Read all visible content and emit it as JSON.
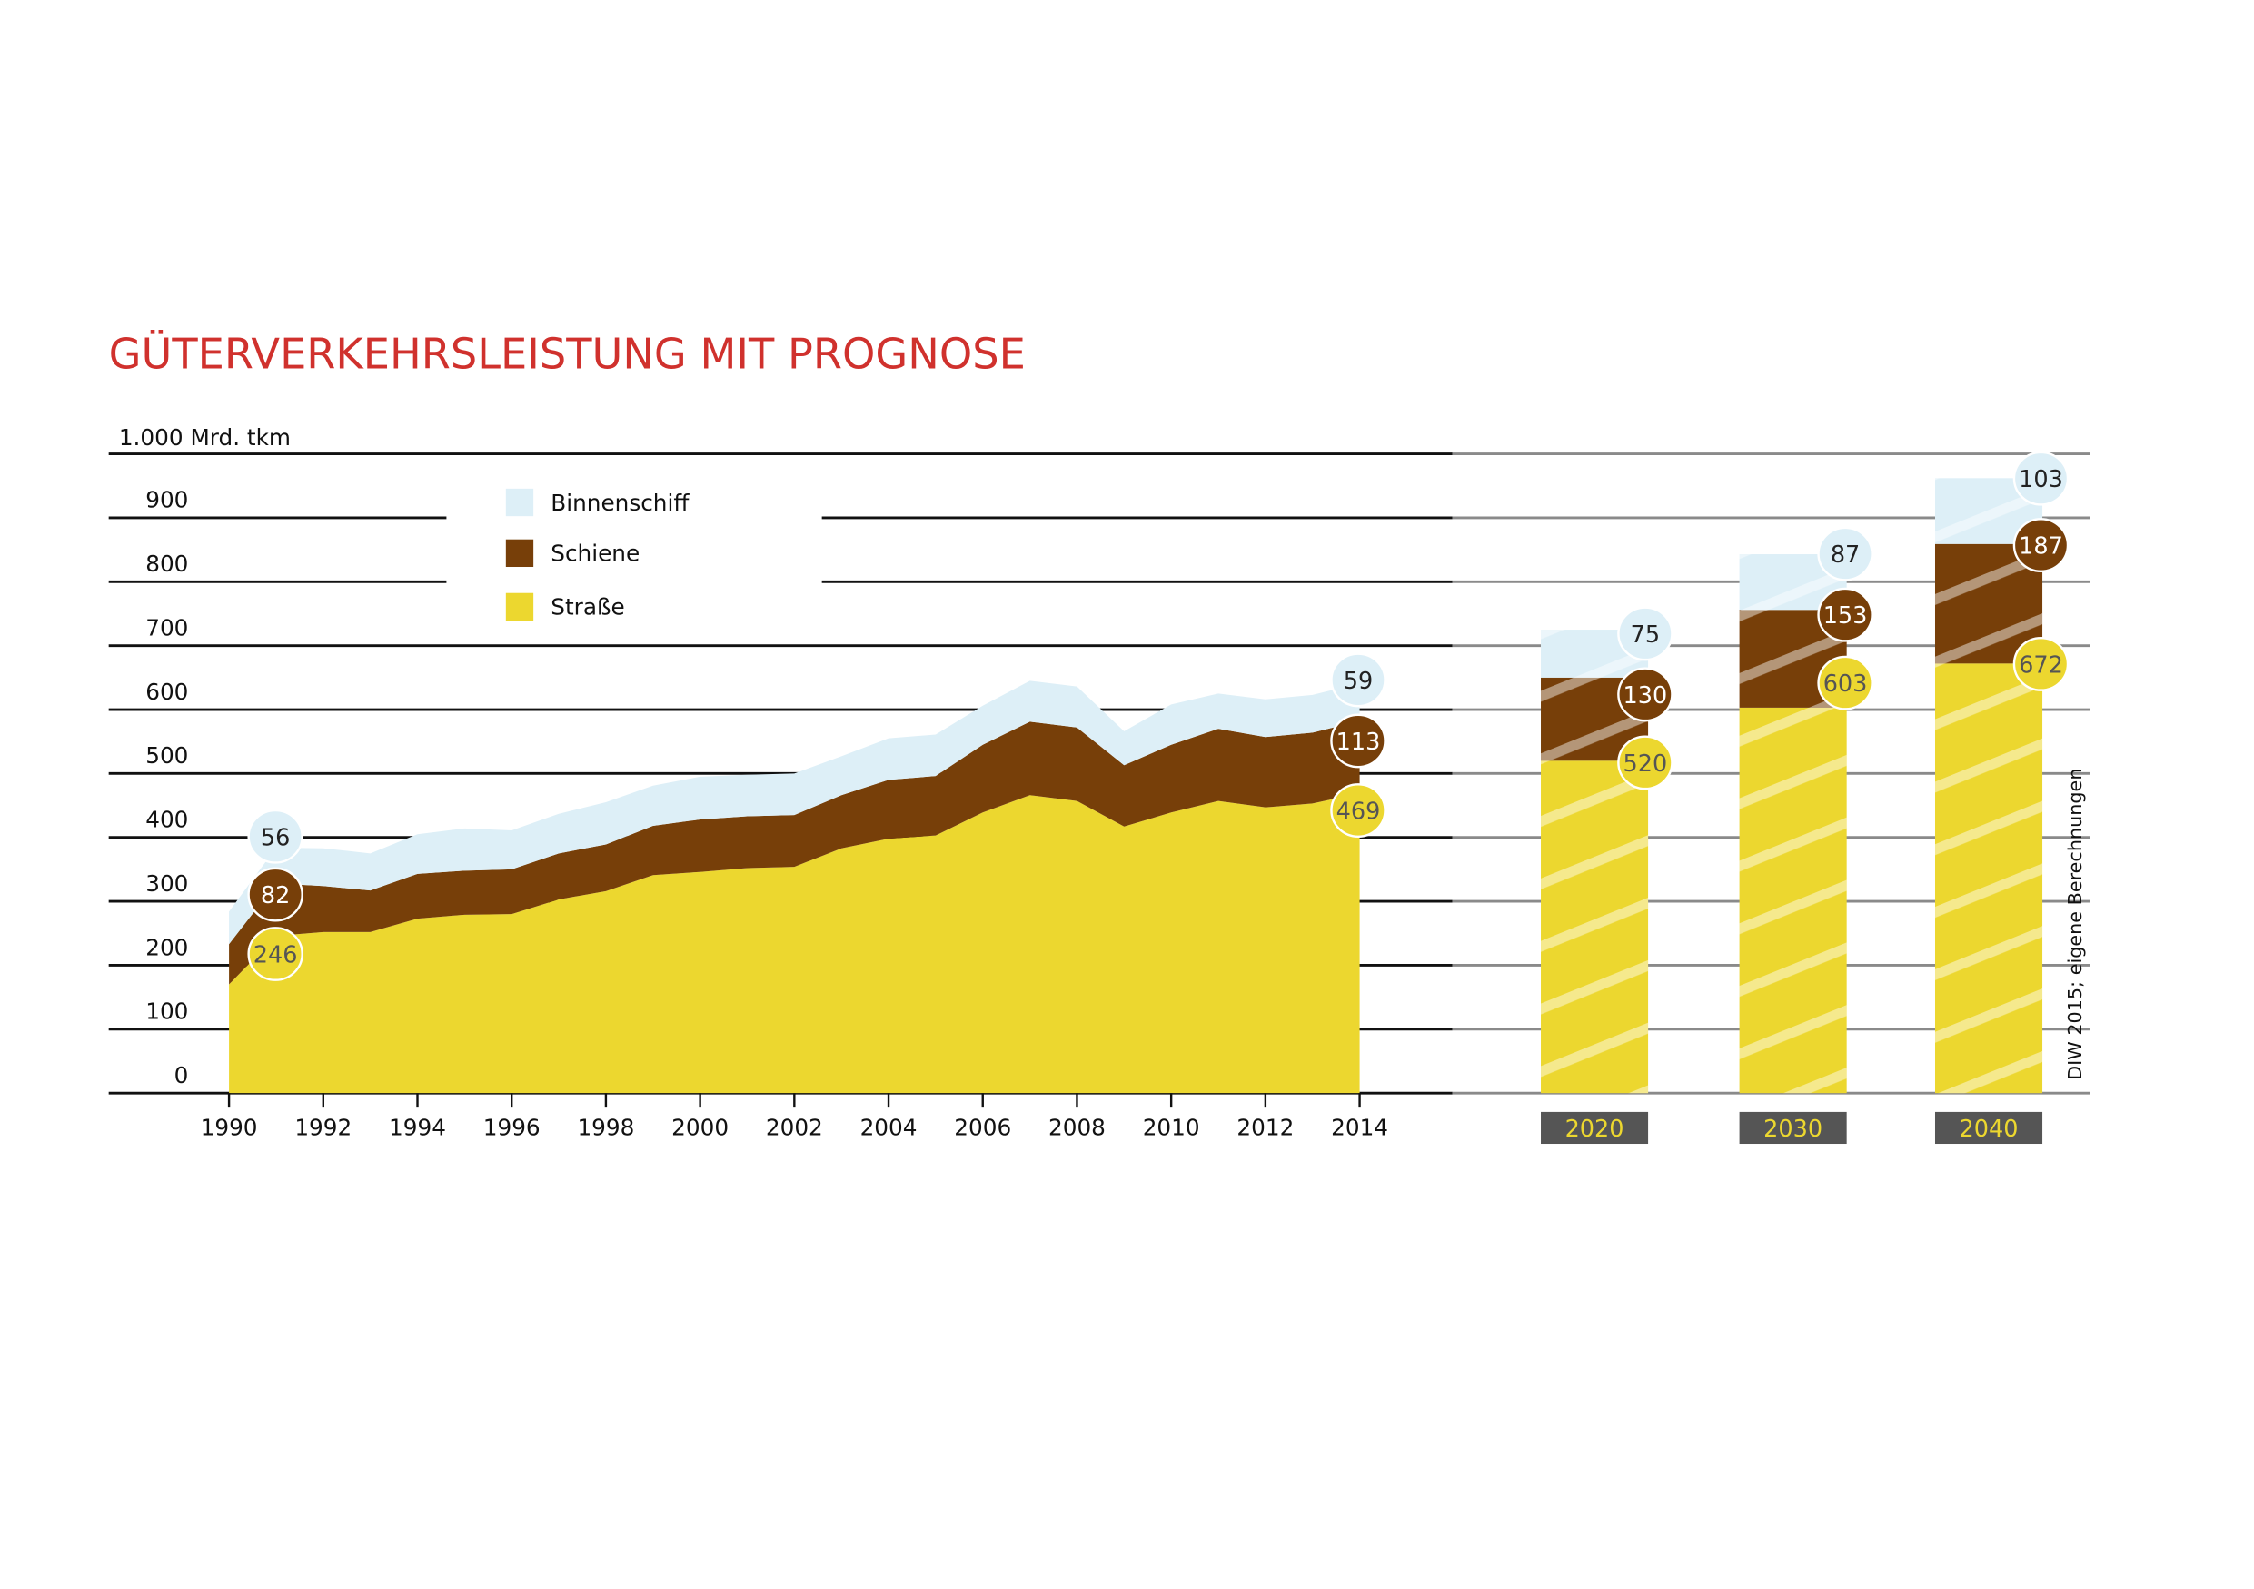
{
  "chart_data": {
    "type": "area",
    "title": "GÜTERVERKEHRSLEISTUNG MIT PROGNOSE",
    "ylabel": "1.000 Mrd. tkm",
    "ylim": [
      0,
      1000
    ],
    "yticks": [
      "0",
      "100",
      "200",
      "300",
      "400",
      "500",
      "600",
      "700",
      "800",
      "900"
    ],
    "grid": true,
    "legend": {
      "position": "top-left",
      "entries": [
        "Binnenschiff",
        "Schiene",
        "Straße"
      ]
    },
    "colors": {
      "Binnenschiff": "#ddeff7",
      "Schiene": "#773f09",
      "Straße": "#ecd72f",
      "title": "#d0312d",
      "year_box": "#555555"
    },
    "x": [
      1990,
      1991,
      1992,
      1993,
      1994,
      1995,
      1996,
      1997,
      1998,
      1999,
      2000,
      2001,
      2002,
      2003,
      2004,
      2005,
      2006,
      2007,
      2008,
      2009,
      2010,
      2011,
      2012,
      2013,
      2014
    ],
    "xticks": [
      "1990",
      "1992",
      "1994",
      "1996",
      "1998",
      "2000",
      "2002",
      "2004",
      "2006",
      "2008",
      "2010",
      "2012",
      "2014"
    ],
    "series": [
      {
        "name": "Straße",
        "values": [
          170,
          246,
          252,
          252,
          273,
          279,
          280,
          303,
          316,
          341,
          346,
          352,
          354,
          383,
          398,
          403,
          439,
          466,
          457,
          417,
          439,
          457,
          447,
          453,
          469
        ]
      },
      {
        "name": "Schiene",
        "values": [
          63,
          82,
          72,
          65,
          70,
          69,
          70,
          72,
          73,
          77,
          82,
          81,
          81,
          83,
          92,
          93,
          106,
          115,
          115,
          96,
          106,
          113,
          110,
          111,
          113
        ]
      },
      {
        "name": "Binnenschiff",
        "values": [
          51,
          56,
          59,
          58,
          62,
          66,
          61,
          62,
          66,
          63,
          67,
          65,
          65,
          61,
          65,
          65,
          61,
          64,
          64,
          53,
          63,
          55,
          59,
          59,
          59
        ]
      }
    ],
    "area_labels": [
      {
        "year": 1991,
        "Binnenschiff": "56",
        "Schiene": "82",
        "Straße": "246"
      },
      {
        "year": 2014,
        "Binnenschiff": "59",
        "Schiene": "113",
        "Straße": "469"
      }
    ],
    "forecast": {
      "type": "stacked-bar",
      "categories": [
        "2020",
        "2030",
        "2040"
      ],
      "series": [
        {
          "name": "Straße",
          "values": [
            520,
            603,
            672
          ],
          "labels": [
            "520",
            "603",
            "672"
          ]
        },
        {
          "name": "Schiene",
          "values": [
            130,
            153,
            187
          ],
          "labels": [
            "130",
            "153",
            "187"
          ]
        },
        {
          "name": "Binnenschiff",
          "values": [
            75,
            87,
            103
          ],
          "labels": [
            "75",
            "87",
            "103"
          ]
        }
      ]
    },
    "source": "DIW 2015; eigene Berechnungen"
  }
}
